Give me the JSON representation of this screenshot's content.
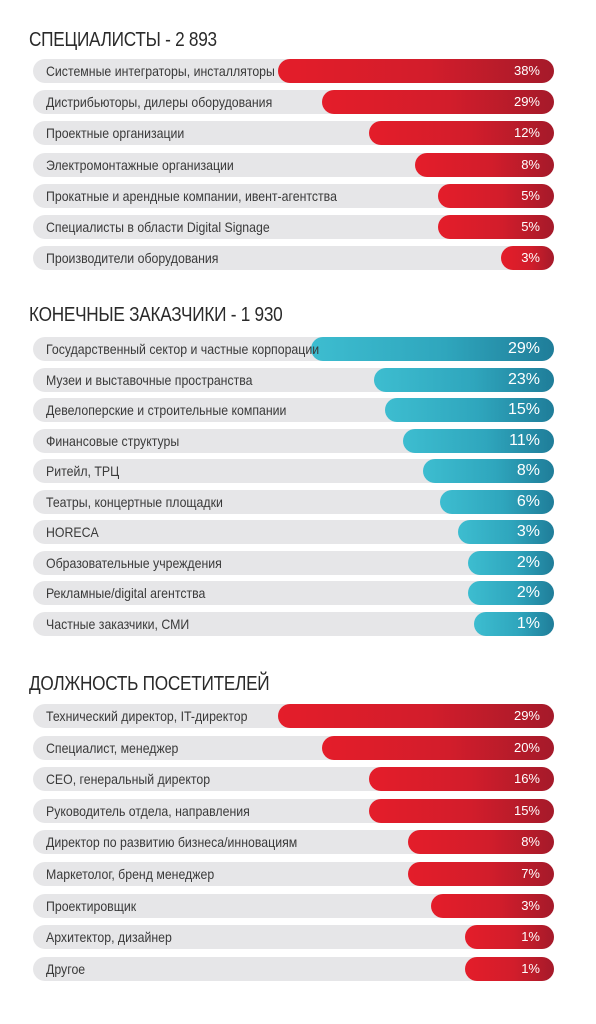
{
  "chart_data": [
    {
      "type": "bar",
      "title": "СПЕЦИАЛИСТЫ - 2 893",
      "categories": [
        "Системные интеграторы, инсталляторы",
        "Дистрибьюторы, дилеры оборудования",
        "Проектные организации",
        "Электромонтажные организации",
        "Прокатные и арендные компании, ивент-агентства",
        "Специалисты в области Digital Signage",
        "Производители оборудования"
      ],
      "values": [
        38,
        29,
        12,
        8,
        5,
        5,
        3
      ],
      "value_labels": [
        "38%",
        "29%",
        "12%",
        "8%",
        "5%",
        "5%",
        "3%"
      ],
      "color": "#e3212e"
    },
    {
      "type": "bar",
      "title": "КОНЕЧНЫЕ ЗАКАЗЧИКИ - 1 930",
      "categories": [
        "Государственный сектор и частные корпорации",
        "Музеи и выставочные пространства",
        "Девелоперские и строительные компании",
        "Финансовые структуры",
        "Ритейл, ТРЦ",
        "Театры, концертные площадки",
        "HORECA",
        "Образовательные учреждения",
        "Рекламные/digital агентства",
        "Частные заказчики, СМИ"
      ],
      "values": [
        29,
        23,
        15,
        11,
        8,
        6,
        3,
        2,
        2,
        1
      ],
      "value_labels": [
        "29%",
        "23%",
        "15%",
        "11%",
        "8%",
        "6%",
        "3%",
        "2%",
        "2%",
        "1%"
      ],
      "color": "#2fa6bd"
    },
    {
      "type": "bar",
      "title": "ДОЛЖНОСТЬ ПОСЕТИТЕЛЕЙ",
      "categories": [
        "Технический директор, IT-директор",
        "Специалист, менеджер",
        "CEO, генеральный директор",
        "Руководитель отдела, направления",
        "Директор по развитию бизнеса/инновациям",
        "Маркетолог, бренд менеджер",
        "Проектировщик",
        "Архитектор, дизайнер",
        "Другое"
      ],
      "values": [
        29,
        20,
        16,
        15,
        8,
        7,
        3,
        1,
        1
      ],
      "value_labels": [
        "29%",
        "20%",
        "16%",
        "15%",
        "8%",
        "7%",
        "3%",
        "1%",
        "1%"
      ],
      "color": "#e3212e"
    }
  ]
}
